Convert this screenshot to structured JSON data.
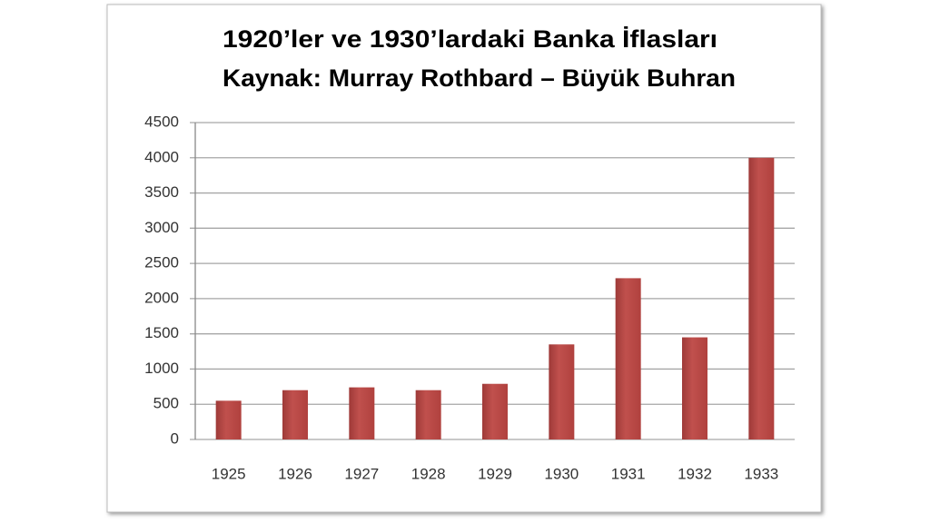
{
  "chart_data": {
    "type": "bar",
    "title": "1920’ler ve 1930’lardaki Banka İflasları",
    "subtitle": "Kaynak: Murray Rothbard – Büyük Buhran",
    "categories": [
      "1925",
      "1926",
      "1927",
      "1928",
      "1929",
      "1930",
      "1931",
      "1932",
      "1933"
    ],
    "values": [
      550,
      700,
      740,
      700,
      790,
      1350,
      2290,
      1450,
      4000
    ],
    "color": "#c0504d",
    "ylim": [
      0,
      4500
    ],
    "yticks": [
      0,
      500,
      1000,
      1500,
      2000,
      2500,
      3000,
      3500,
      4000,
      4500
    ],
    "grid": true
  }
}
